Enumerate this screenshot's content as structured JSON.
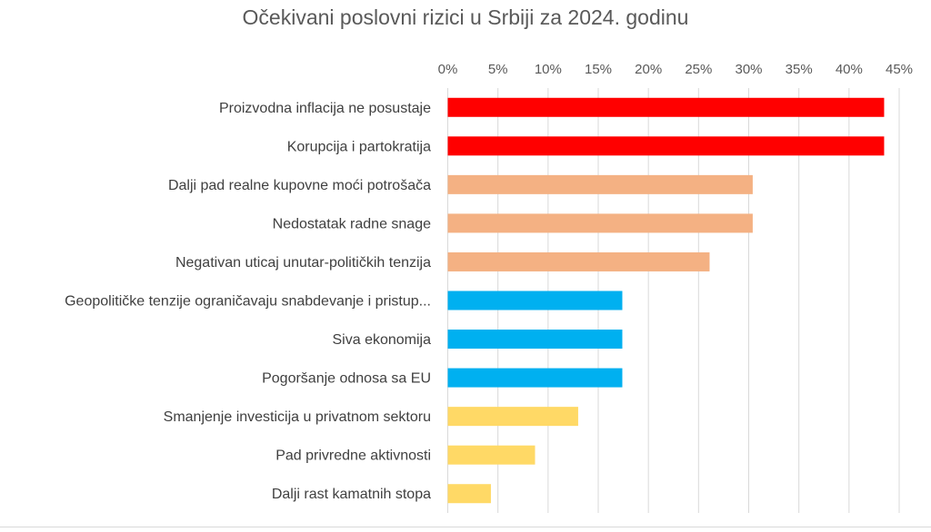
{
  "chart_data": {
    "type": "bar",
    "orientation": "horizontal",
    "title": "Očekivani poslovni rizici u Srbiji za 2024. godinu",
    "xlabel": "",
    "ylabel": "",
    "xlim": [
      0,
      45
    ],
    "x_ticks": [
      "0%",
      "5%",
      "10%",
      "15%",
      "20%",
      "25%",
      "30%",
      "35%",
      "40%",
      "45%"
    ],
    "x_axis_position": "top",
    "grid": true,
    "categories": [
      "Proizvodna inflacija ne posustaje",
      "Korupcija i partokratija",
      "Dalji pad realne kupovne moći potrošača",
      "Nedostatak radne snage",
      "Negativan uticaj unutar-političkih tenzija",
      "Geopolitičke tenzije ograničavaju snabdevanje i pristup...",
      "Siva ekonomija",
      "Pogoršanje odnosa sa EU",
      "Smanjenje investicija u privatnom sektoru",
      "Pad privredne aktivnosti",
      "Dalji rast kamatnih stopa"
    ],
    "values": [
      43.5,
      43.5,
      30.4,
      30.4,
      26.1,
      17.4,
      17.4,
      17.4,
      13.0,
      8.7,
      4.3
    ],
    "colors": [
      "#FF0000",
      "#FF0000",
      "#F4B183",
      "#F4B183",
      "#F4B183",
      "#00B0F0",
      "#00B0F0",
      "#00B0F0",
      "#FFD966",
      "#FFD966",
      "#FFD966"
    ]
  }
}
